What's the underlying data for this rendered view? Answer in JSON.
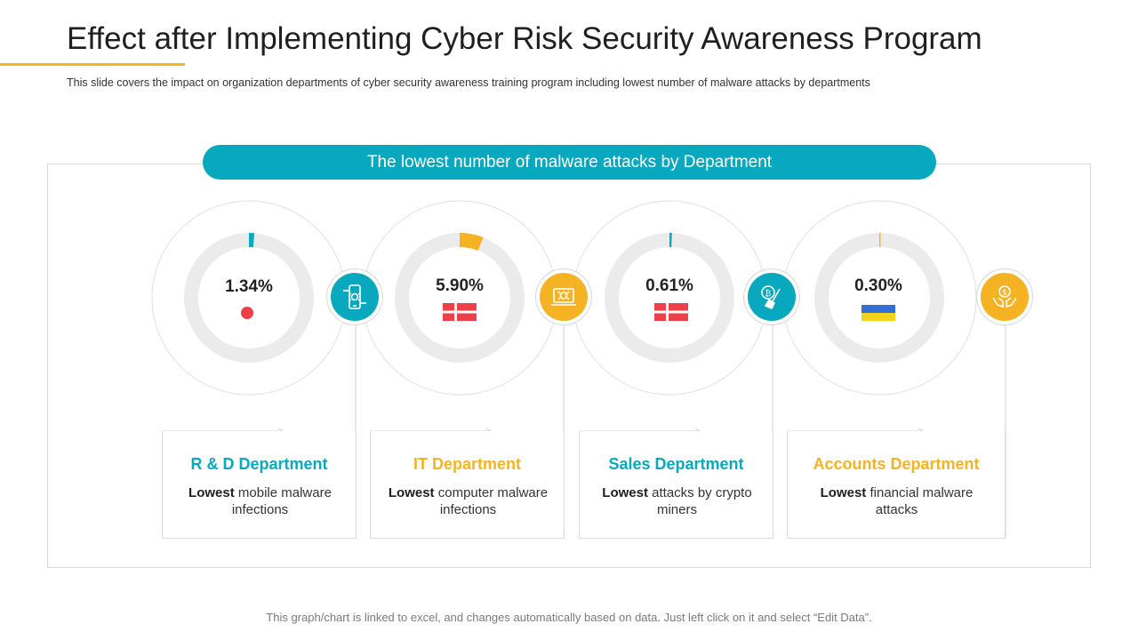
{
  "header": {
    "title": "Effect after Implementing Cyber Risk Security Awareness Program",
    "subtitle": "This slide covers the impact on organization departments of cyber security awareness training program including lowest number of malware attacks by departments"
  },
  "banner": {
    "label": "The lowest number of malware attacks by Department"
  },
  "colors": {
    "teal": "#08a8bf",
    "yellow": "#f5b324",
    "track": "#ebebeb"
  },
  "chart_data": {
    "type": "donut",
    "title": "The lowest number of malware attacks by Department",
    "categories": [
      "R & D Department",
      "IT Department",
      "Sales Department",
      "Accounts Department"
    ],
    "values": [
      1.34,
      5.9,
      0.61,
      0.3
    ],
    "labels": [
      "1.34%",
      "5.90%",
      "0.61%",
      "0.30%"
    ],
    "unit": "%",
    "segment_colors": [
      "#08a8bf",
      "#f5b324",
      "#08a8bf",
      "#f5b324"
    ]
  },
  "departments": [
    {
      "name": "R & D Department",
      "bold": "Lowest",
      "text": " mobile malware infections",
      "color": "#08a8bf",
      "icon": "mobile-bug-icon",
      "marker": "dot"
    },
    {
      "name": "IT Department",
      "bold": "Lowest",
      "text": " computer malware infections",
      "color": "#f5b324",
      "icon": "laptop-bug-icon",
      "marker": "flag-red"
    },
    {
      "name": "Sales Department",
      "bold": "Lowest",
      "text": " attacks by crypto miners",
      "color": "#08a8bf",
      "icon": "crypto-shovel-icon",
      "marker": "flag-red"
    },
    {
      "name": "Accounts Department",
      "bold": "Lowest",
      "text": " financial malware attacks",
      "color": "#f5b324",
      "icon": "hands-money-icon",
      "marker": "flag-ua"
    }
  ],
  "footer": {
    "note": "This graph/chart is linked to excel, and changes automatically based on data. Just left click on it and select “Edit Data”."
  }
}
